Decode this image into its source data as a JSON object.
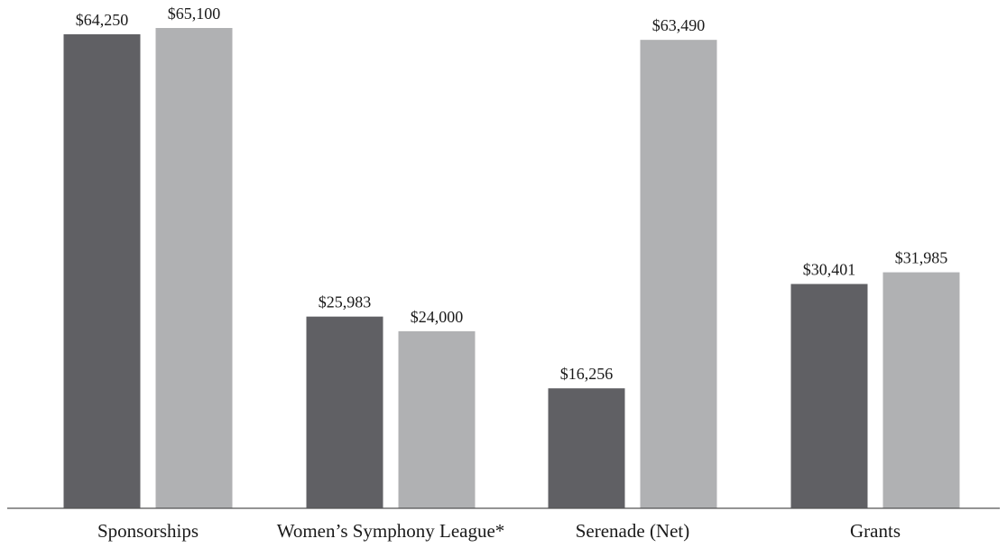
{
  "chart_data": {
    "type": "bar",
    "title": "",
    "xlabel": "",
    "ylabel": "",
    "categories": [
      "Sponsorships",
      "Women’s Symphony League*",
      "Serenade (Net)",
      "Grants"
    ],
    "ylim": [
      0,
      65100
    ],
    "grid": false,
    "series": [
      {
        "color": "#606064",
        "values": [
          64250,
          25983,
          16256,
          30401
        ],
        "labels": [
          "$64,250",
          "$25,983",
          "$16,256",
          "$30,401"
        ]
      },
      {
        "color": "#b0b1b3",
        "values": [
          65100,
          24000,
          63490,
          31985
        ],
        "labels": [
          "$65,100",
          "$24,000",
          "$63,490",
          "$31,985"
        ]
      }
    ],
    "axis_color": "#555555"
  }
}
